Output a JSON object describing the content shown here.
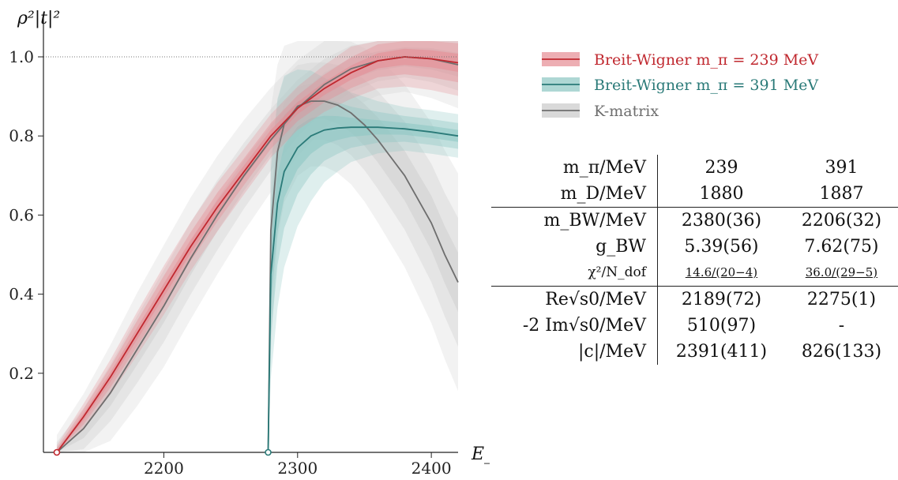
{
  "chart_data": {
    "type": "line",
    "ylabel": "ρ²|t|²",
    "xlabel": "E_cm/MeV",
    "xlim": [
      2110,
      2420
    ],
    "ylim": [
      0,
      1.05
    ],
    "xticks": [
      2200,
      2300,
      2400
    ],
    "yticks": [
      0.2,
      0.4,
      0.6,
      0.8,
      1.0
    ],
    "ytick_labels": [
      "0.2",
      "0.4",
      "0.6",
      "0.8",
      "1.0"
    ],
    "reference_line": 1.0,
    "legend_position": "top-right",
    "series": [
      {
        "name": "Breit-Wigner m_π = 239 MeV",
        "color": "#c0282f",
        "band_color": "#e58c93",
        "threshold": 2120,
        "x": [
          2120,
          2140,
          2160,
          2180,
          2200,
          2220,
          2240,
          2260,
          2280,
          2300,
          2320,
          2340,
          2360,
          2380,
          2400,
          2420
        ],
        "y": [
          0,
          0.09,
          0.19,
          0.3,
          0.41,
          0.52,
          0.62,
          0.71,
          0.8,
          0.87,
          0.92,
          0.96,
          0.99,
          1.0,
          0.995,
          0.985
        ],
        "band": [
          0.008,
          0.015,
          0.02,
          0.025,
          0.028,
          0.028,
          0.028,
          0.026,
          0.025,
          0.025,
          0.027,
          0.03,
          0.032,
          0.034,
          0.036,
          0.038
        ]
      },
      {
        "name": "Breit-Wigner m_π = 391 MeV",
        "color": "#2a7a78",
        "band_color": "#8cc6c2",
        "threshold": 2278,
        "x": [
          2278,
          2280,
          2285,
          2290,
          2300,
          2310,
          2320,
          2330,
          2340,
          2360,
          2380,
          2400,
          2420
        ],
        "y": [
          0,
          0.45,
          0.63,
          0.71,
          0.77,
          0.8,
          0.815,
          0.82,
          0.822,
          0.822,
          0.818,
          0.81,
          0.8
        ],
        "band": [
          0.0,
          0.12,
          0.12,
          0.11,
          0.09,
          0.075,
          0.06,
          0.05,
          0.04,
          0.03,
          0.025,
          0.025,
          0.025
        ]
      },
      {
        "name": "K-matrix",
        "color": "#6e6e6e",
        "band_color": "#cfcfcf",
        "segments": [
          {
            "x": [
              2120,
              2140,
              2160,
              2180,
              2200,
              2220,
              2240,
              2260,
              2280,
              2300,
              2320,
              2340,
              2360,
              2380,
              2400,
              2420
            ],
            "y": [
              0,
              0.06,
              0.15,
              0.26,
              0.37,
              0.49,
              0.6,
              0.7,
              0.79,
              0.87,
              0.93,
              0.97,
              0.99,
              1.0,
              0.995,
              0.98
            ],
            "band": [
              0.02,
              0.04,
              0.055,
              0.065,
              0.07,
              0.07,
              0.068,
              0.064,
              0.06,
              0.055,
              0.05,
              0.045,
              0.04,
              0.04,
              0.045,
              0.05
            ]
          },
          {
            "x": [
              2278,
              2280,
              2285,
              2290,
              2300,
              2310,
              2320,
              2330,
              2340,
              2350,
              2360,
              2370,
              2380,
              2390,
              2400,
              2410,
              2420
            ],
            "y": [
              0,
              0.56,
              0.76,
              0.83,
              0.875,
              0.888,
              0.888,
              0.878,
              0.858,
              0.828,
              0.79,
              0.745,
              0.7,
              0.64,
              0.58,
              0.5,
              0.43
            ],
            "band": [
              0.0,
              0.14,
              0.1,
              0.09,
              0.08,
              0.075,
              0.075,
              0.078,
              0.082,
              0.088,
              0.095,
              0.1,
              0.105,
              0.11,
              0.115,
              0.12,
              0.125
            ]
          }
        ]
      }
    ]
  },
  "legend": {
    "items": [
      {
        "label": "Breit-Wigner m_π = 239 MeV",
        "color": "#c0282f",
        "band": "#e58c93"
      },
      {
        "label": "Breit-Wigner m_π = 391 MeV",
        "color": "#2a7a78",
        "band": "#8cc6c2"
      },
      {
        "label": "K-matrix",
        "color": "#6e6e6e",
        "band": "#cfcfcf"
      }
    ]
  },
  "table": {
    "rows": [
      {
        "label": "m_π/MeV",
        "v1": "239",
        "v2": "391"
      },
      {
        "label": "m_D/MeV",
        "v1": "1880",
        "v2": "1887"
      },
      {
        "label": "m_BW/MeV",
        "v1": "2380(36)",
        "v2": "2206(32)"
      },
      {
        "label": "g_BW",
        "v1": "5.39(56)",
        "v2": "7.62(75)"
      },
      {
        "label": "χ²/N_dof",
        "v1": "14.6/(20−4)",
        "v2": "36.0/(29−5)"
      },
      {
        "label": "Re√s0/MeV",
        "v1": "2189(72)",
        "v2": "2275(1)"
      },
      {
        "label": "-2 Im√s0/MeV",
        "v1": "510(97)",
        "v2": "-"
      },
      {
        "label": "|c|/MeV",
        "v1": "2391(411)",
        "v2": "826(133)"
      }
    ]
  }
}
